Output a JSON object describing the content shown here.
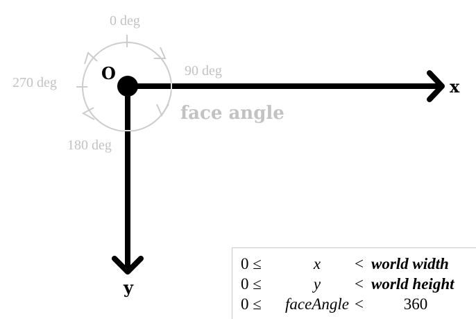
{
  "labels": {
    "origin": "O",
    "x_axis": "x",
    "y_axis": "y",
    "face_angle": "face angle",
    "deg_0": "0 deg",
    "deg_90": "90 deg",
    "deg_180": "180 deg",
    "deg_270": "270 deg"
  },
  "ranges": [
    {
      "lower": "0 ≤",
      "variable": "x",
      "op": "<",
      "upper": "world width"
    },
    {
      "lower": "0 ≤",
      "variable": "y",
      "op": "<",
      "upper": "world height"
    },
    {
      "lower": "0 ≤",
      "variable": "faceAngle",
      "op": "<",
      "upper": "360"
    }
  ],
  "colors": {
    "axis": "#000000",
    "angle_guide": "#cccccc",
    "angle_text": "#c2c2c2"
  }
}
